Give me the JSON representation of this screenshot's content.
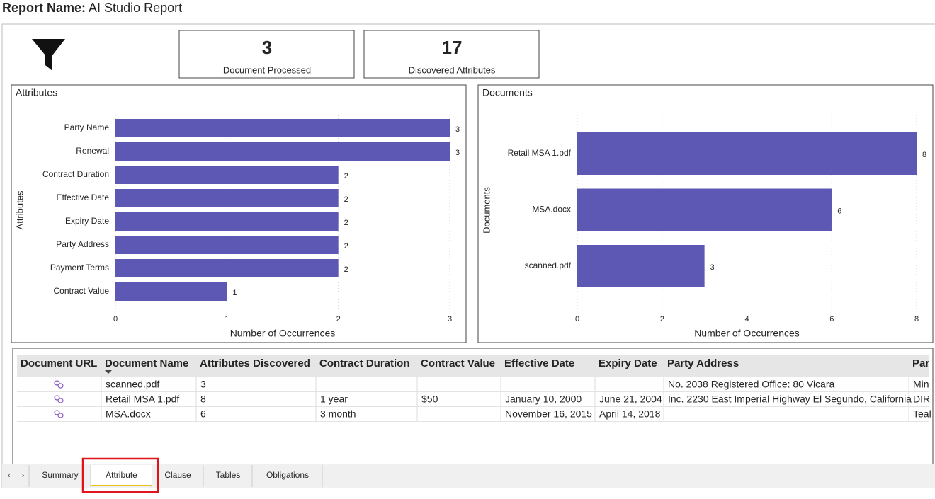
{
  "header": {
    "label": "Report Name:",
    "title": "AI Studio Report"
  },
  "cards": [
    {
      "value": 3,
      "label": "Document Processed"
    },
    {
      "value": 17,
      "label": "Discovered Attributes"
    }
  ],
  "chart_data": [
    {
      "type": "bar",
      "orientation": "horizontal",
      "title": "Attributes",
      "y_label": "Attributes",
      "x_label": "Number of Occurrences",
      "categories": [
        "Party Name",
        "Renewal",
        "Contract Duration",
        "Effective Date",
        "Expiry Date",
        "Party Address",
        "Payment Terms",
        "Contract Value"
      ],
      "values": [
        3,
        3,
        2,
        2,
        2,
        2,
        2,
        1
      ],
      "color": "#5d58b3",
      "xlim": [
        0,
        3
      ],
      "xticks": [
        0,
        1,
        2,
        3
      ],
      "grid": true
    },
    {
      "type": "bar",
      "orientation": "horizontal",
      "title": "Documents",
      "y_label": "Documents",
      "x_label": "Number of Occurrences",
      "categories": [
        "Retail MSA 1.pdf",
        "MSA.docx",
        "scanned.pdf"
      ],
      "values": [
        8,
        6,
        3
      ],
      "color": "#5d58b3",
      "xlim": [
        0,
        8
      ],
      "xticks": [
        0,
        2,
        4,
        6,
        8
      ],
      "grid": true
    }
  ],
  "table": {
    "columns": [
      "Document URL",
      "Document Name",
      "Attributes Discovered",
      "Contract Duration",
      "Contract Value",
      "Effective Date",
      "Expiry Date",
      "Party Address",
      "Par"
    ],
    "sort_column": 1,
    "rows": [
      [
        null,
        "scanned.pdf",
        3,
        null,
        null,
        null,
        null,
        "No. 2038 Registered Office: 80 Vicara",
        "Min"
      ],
      [
        null,
        "Retail MSA 1.pdf",
        8,
        "1 year",
        "$50",
        "January 10, 2000",
        "June 21, 2004",
        "Inc. 2230 East Imperial Highway El Segundo, California",
        "DIR"
      ],
      [
        null,
        "MSA.docx",
        6,
        "3 month",
        null,
        "November 16, 2015",
        "April 14, 2018",
        null,
        "Teal"
      ]
    ]
  },
  "tabs": {
    "items": [
      "Summary",
      "Attribute",
      "Clause",
      "Tables",
      "Obligations"
    ],
    "active": 1
  }
}
